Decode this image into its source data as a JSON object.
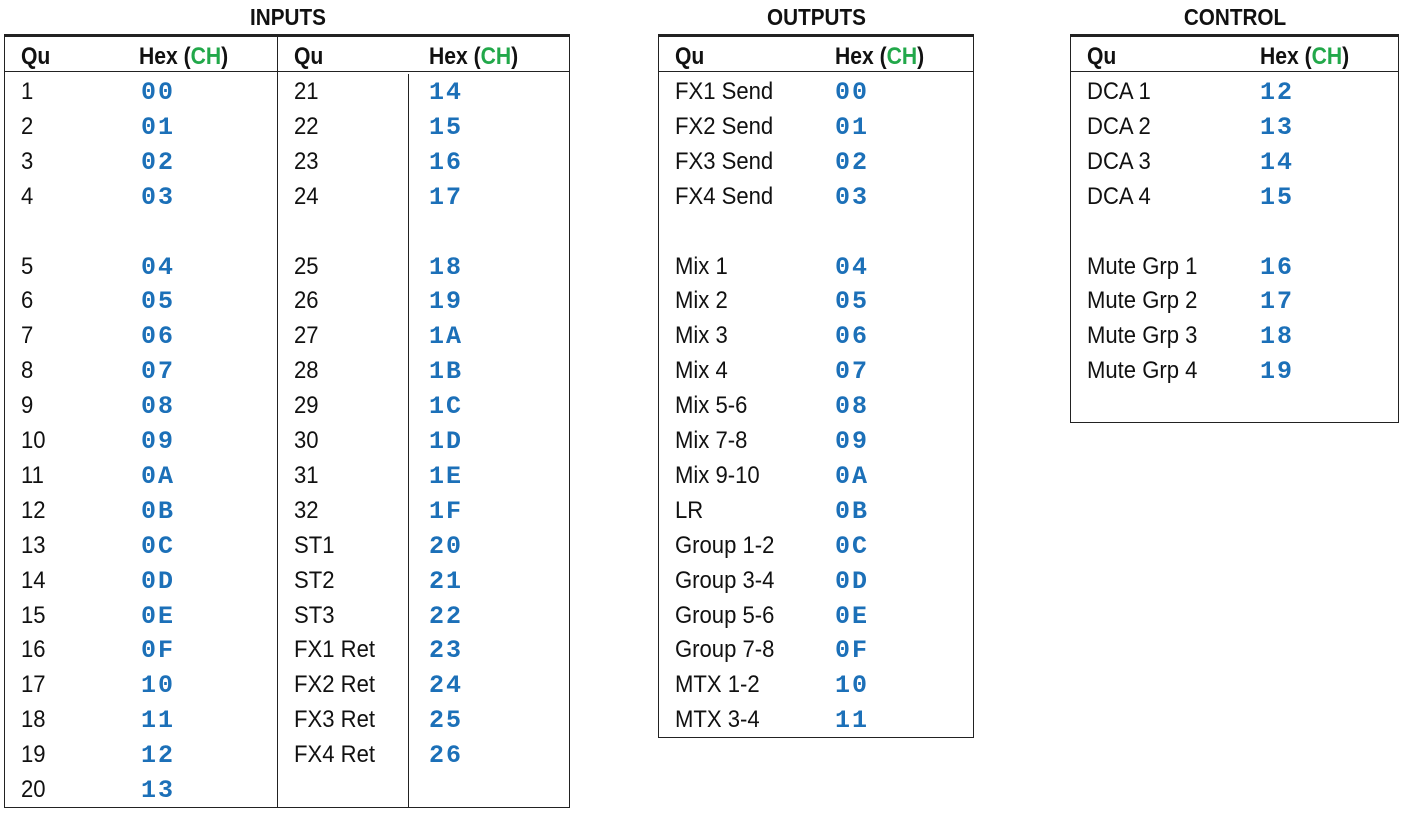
{
  "inputs": {
    "title": "INPUTS",
    "headers": {
      "qu": "Qu",
      "hex": "Hex",
      "ch": "CH",
      "lparen": "(",
      "rparen": ")"
    },
    "col1": [
      [
        "1",
        "00"
      ],
      [
        "2",
        "01"
      ],
      [
        "3",
        "02"
      ],
      [
        "4",
        "03"
      ],
      [
        "5",
        "04"
      ],
      [
        "6",
        "05"
      ],
      [
        "7",
        "06"
      ],
      [
        "8",
        "07"
      ],
      [
        "9",
        "08"
      ],
      [
        "10",
        "09"
      ],
      [
        "11",
        "0A"
      ],
      [
        "12",
        "0B"
      ],
      [
        "13",
        "0C"
      ],
      [
        "14",
        "0D"
      ],
      [
        "15",
        "0E"
      ],
      [
        "16",
        "0F"
      ],
      [
        "17",
        "10"
      ],
      [
        "18",
        "11"
      ],
      [
        "19",
        "12"
      ],
      [
        "20",
        "13"
      ]
    ],
    "col2": [
      [
        "21",
        "14"
      ],
      [
        "22",
        "15"
      ],
      [
        "23",
        "16"
      ],
      [
        "24",
        "17"
      ],
      [
        "25",
        "18"
      ],
      [
        "26",
        "19"
      ],
      [
        "27",
        "1A"
      ],
      [
        "28",
        "1B"
      ],
      [
        "29",
        "1C"
      ],
      [
        "30",
        "1D"
      ],
      [
        "31",
        "1E"
      ],
      [
        "32",
        "1F"
      ],
      [
        "ST1",
        "20"
      ],
      [
        "ST2",
        "21"
      ],
      [
        "ST3",
        "22"
      ],
      [
        "FX1 Ret",
        "23"
      ],
      [
        "FX2 Ret",
        "24"
      ],
      [
        "FX3 Ret",
        "25"
      ],
      [
        "FX4 Ret",
        "26"
      ]
    ]
  },
  "outputs": {
    "title": "OUTPUTS",
    "headers": {
      "qu": "Qu",
      "hex": "Hex",
      "ch": "CH",
      "lparen": "(",
      "rparen": ")"
    },
    "rows": [
      [
        "FX1 Send",
        "00"
      ],
      [
        "FX2 Send",
        "01"
      ],
      [
        "FX3 Send",
        "02"
      ],
      [
        "FX4 Send",
        "03"
      ],
      [
        "Mix 1",
        "04"
      ],
      [
        "Mix 2",
        "05"
      ],
      [
        "Mix 3",
        "06"
      ],
      [
        "Mix 4",
        "07"
      ],
      [
        "Mix 5-6",
        "08"
      ],
      [
        "Mix 7-8",
        "09"
      ],
      [
        "Mix 9-10",
        "0A"
      ],
      [
        "LR",
        "0B"
      ],
      [
        "Group 1-2",
        "0C"
      ],
      [
        "Group 3-4",
        "0D"
      ],
      [
        "Group 5-6",
        "0E"
      ],
      [
        "Group 7-8",
        "0F"
      ],
      [
        "MTX 1-2",
        "10"
      ],
      [
        "MTX 3-4",
        "11"
      ]
    ]
  },
  "control": {
    "title": "CONTROL",
    "headers": {
      "qu": "Qu",
      "hex": "Hex",
      "ch": "CH",
      "lparen": "(",
      "rparen": ")"
    },
    "rows": [
      [
        "DCA 1",
        "12"
      ],
      [
        "DCA 2",
        "13"
      ],
      [
        "DCA 3",
        "14"
      ],
      [
        "DCA 4",
        "15"
      ],
      [
        "Mute Grp 1",
        "16"
      ],
      [
        "Mute Grp 2",
        "17"
      ],
      [
        "Mute Grp 3",
        "18"
      ],
      [
        "Mute Grp 4",
        "19"
      ]
    ]
  },
  "colors": {
    "hex_value": "#1c70b8",
    "ch_label": "#22a84a",
    "text": "#111111"
  }
}
